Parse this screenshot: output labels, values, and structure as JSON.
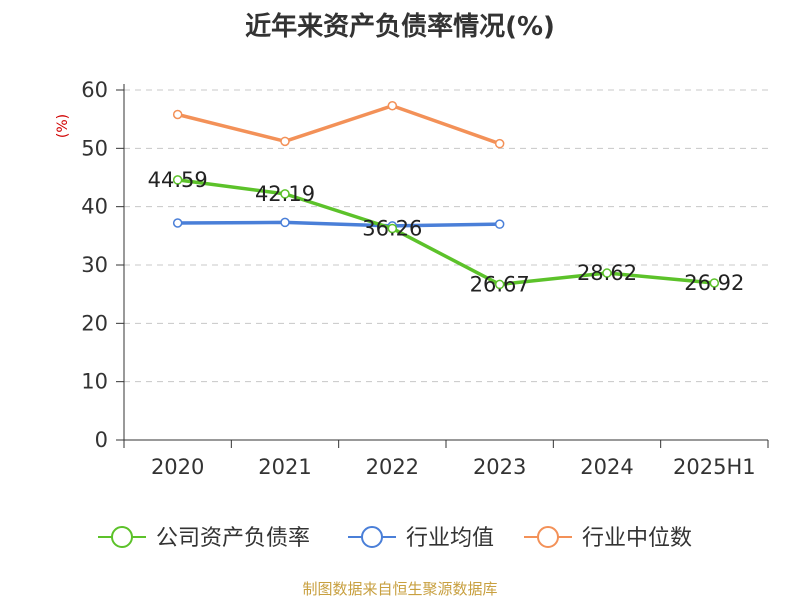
{
  "title": "近年来资产负债率情况(%)",
  "source": "制图数据来自恒生聚源数据库",
  "chart_data": {
    "type": "line",
    "title": "近年来资产负债率情况(%)",
    "ylabel": "(%)",
    "xlabel": "",
    "ylim": [
      0,
      60
    ],
    "yticks": [
      0,
      10,
      20,
      30,
      40,
      50,
      60
    ],
    "grid": true,
    "legend_position": "bottom",
    "categories": [
      "2020",
      "2021",
      "2022",
      "2023",
      "2024",
      "2025H1"
    ],
    "series": [
      {
        "name": "公司资产负债率",
        "color": "#5cc22a",
        "values": [
          44.59,
          42.19,
          36.26,
          26.67,
          28.62,
          26.92
        ],
        "labels": true
      },
      {
        "name": "行业均值",
        "color": "#4a7fd8",
        "values": [
          37.2,
          37.3,
          36.7,
          37.0,
          null,
          null
        ],
        "labels": false
      },
      {
        "name": "行业中位数",
        "color": "#f39158",
        "values": [
          55.8,
          51.2,
          57.3,
          50.8,
          null,
          null
        ],
        "labels": false
      }
    ]
  }
}
